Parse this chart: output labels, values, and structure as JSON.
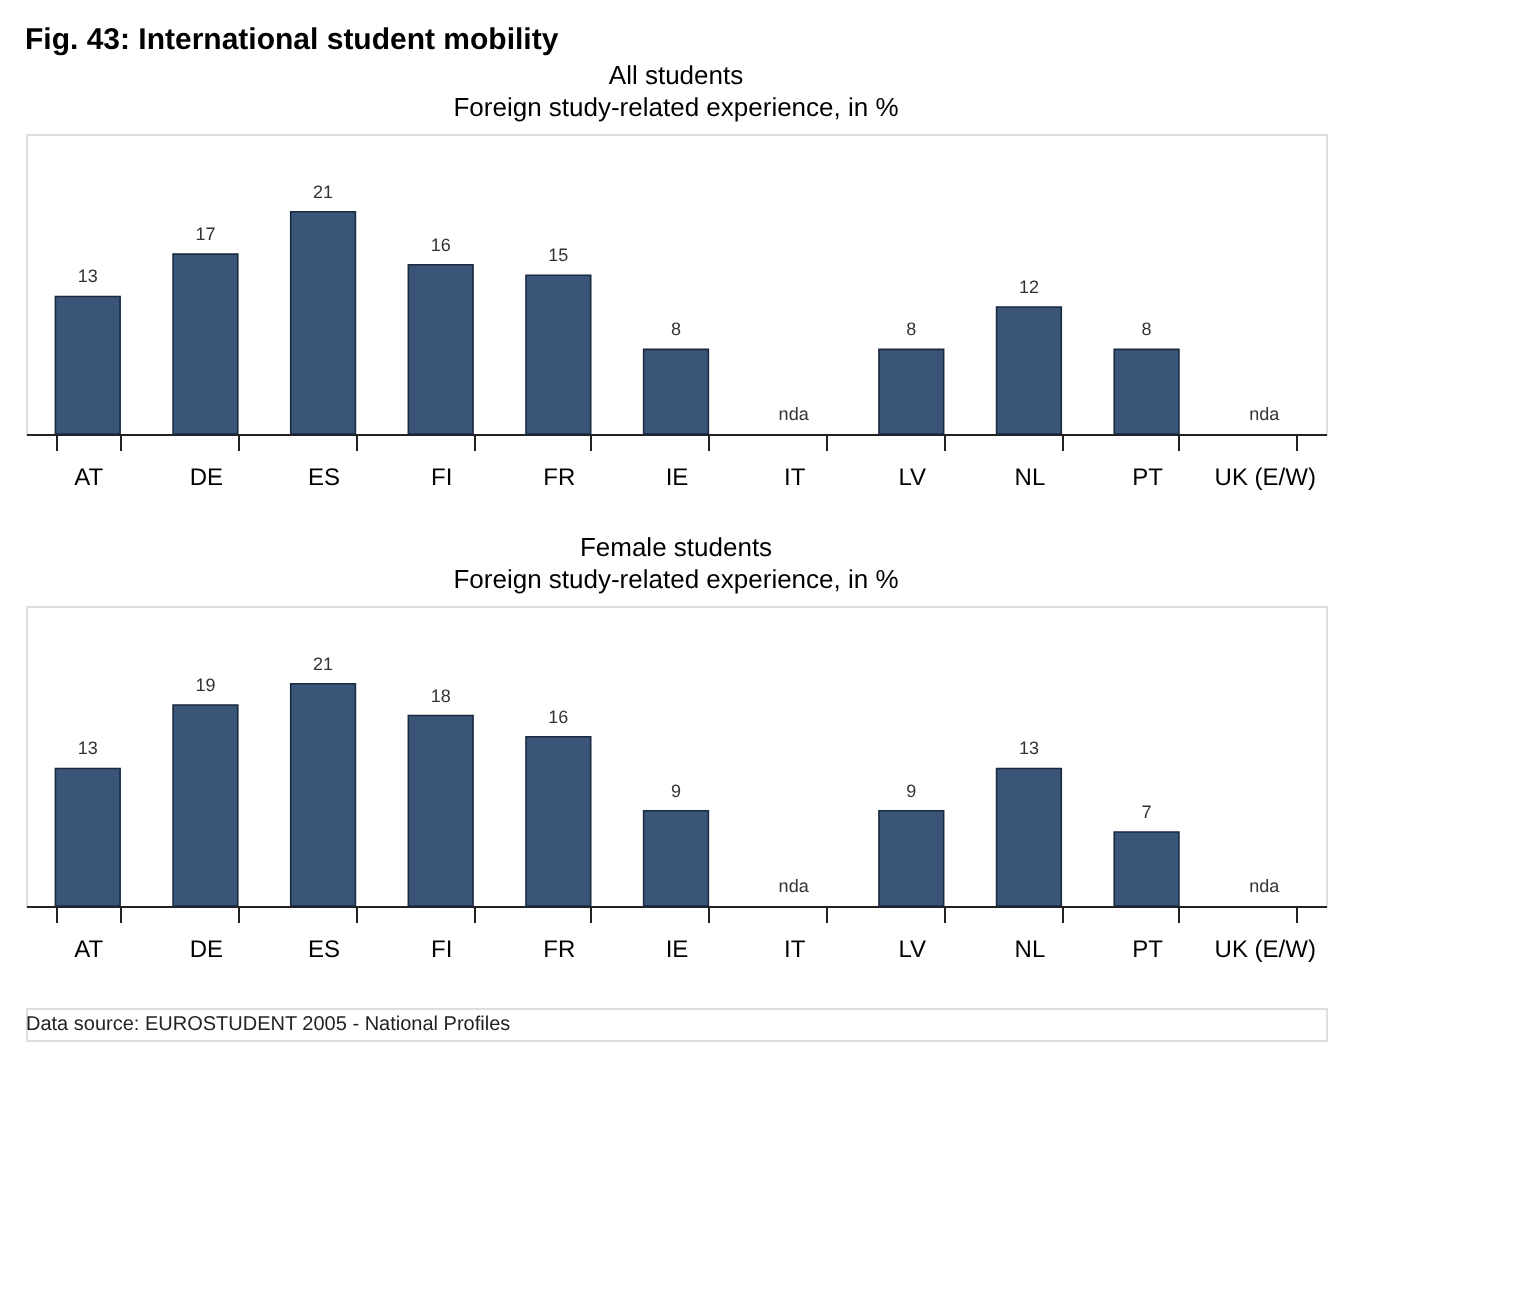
{
  "chart_data": [
    {
      "type": "bar",
      "annotations": [
        "Fig. 43: International student mobility"
      ],
      "title": "All students",
      "subtitle": "Foreign study-related experience, in %",
      "categories": [
        "AT",
        "DE",
        "ES",
        "FI",
        "FR",
        "IE",
        "IT",
        "LV",
        "NL",
        "PT",
        "UK (E/W)"
      ],
      "values": [
        13,
        17,
        21,
        16,
        15,
        8,
        null,
        8,
        12,
        8,
        null
      ],
      "value_labels": [
        "13",
        "17",
        "21",
        "16",
        "15",
        "8",
        "nda",
        "8",
        "12",
        "8",
        "nda"
      ],
      "color": "#3b5578",
      "grid": false
    },
    {
      "type": "bar",
      "annotations": [
        "Data source: EUROSTUDENT 2005 - National Profiles"
      ],
      "title": "Female students",
      "subtitle": "Foreign study-related experience, in %",
      "categories": [
        "AT",
        "DE",
        "ES",
        "FI",
        "FR",
        "IE",
        "IT",
        "LV",
        "NL",
        "PT",
        "UK (E/W)"
      ],
      "values": [
        13,
        19,
        21,
        18,
        16,
        9,
        null,
        9,
        13,
        7,
        null
      ],
      "value_labels": [
        "13",
        "19",
        "21",
        "18",
        "16",
        "9",
        "nda",
        "9",
        "13",
        "7",
        "nda"
      ],
      "color": "#3b5578",
      "grid": false
    }
  ]
}
